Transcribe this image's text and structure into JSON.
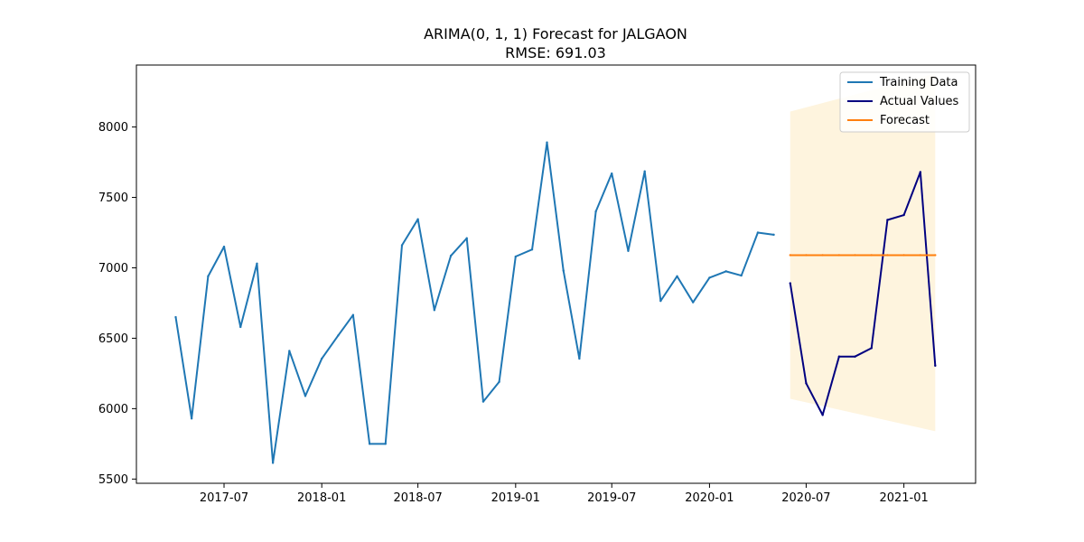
{
  "chart_data": {
    "type": "line",
    "title": "ARIMA(0, 1, 1) Forecast for JALGAON",
    "subtitle": "RMSE: 691.03",
    "xlabel": "",
    "ylabel": "",
    "x_range": [
      "2017-01-17",
      "2021-05-16"
    ],
    "ylim": [
      5470,
      8440
    ],
    "y_ticks": [
      5500,
      6000,
      6500,
      7000,
      7500,
      8000
    ],
    "x_ticks": [
      {
        "date": "2017-07-01",
        "label": "2017-07"
      },
      {
        "date": "2018-01-01",
        "label": "2018-01"
      },
      {
        "date": "2018-07-01",
        "label": "2018-07"
      },
      {
        "date": "2019-01-01",
        "label": "2019-01"
      },
      {
        "date": "2019-07-01",
        "label": "2019-07"
      },
      {
        "date": "2020-01-01",
        "label": "2020-01"
      },
      {
        "date": "2020-07-01",
        "label": "2020-07"
      },
      {
        "date": "2021-01-01",
        "label": "2021-01"
      }
    ],
    "grid": false,
    "legend_position": "top-right",
    "series": [
      {
        "name": "Training Data",
        "color": "#1f77b4",
        "x": [
          "2017-04-01",
          "2017-05-01",
          "2017-06-01",
          "2017-07-01",
          "2017-08-01",
          "2017-09-01",
          "2017-10-01",
          "2017-11-01",
          "2017-12-01",
          "2018-01-01",
          "2018-02-01",
          "2018-03-01",
          "2018-04-01",
          "2018-05-01",
          "2018-06-01",
          "2018-07-01",
          "2018-08-01",
          "2018-09-01",
          "2018-10-01",
          "2018-11-01",
          "2018-12-01",
          "2019-01-01",
          "2019-02-01",
          "2019-03-01",
          "2019-04-01",
          "2019-05-01",
          "2019-06-01",
          "2019-07-01",
          "2019-08-01",
          "2019-09-01",
          "2019-10-01",
          "2019-11-01",
          "2019-12-01",
          "2020-01-01",
          "2020-02-01",
          "2020-03-01",
          "2020-04-01",
          "2020-05-01"
        ],
        "values": [
          6650,
          5930,
          6940,
          7150,
          6580,
          7030,
          5615,
          6410,
          6090,
          6355,
          6520,
          6665,
          5750,
          5750,
          7160,
          7345,
          6700,
          7085,
          7210,
          6050,
          6190,
          7080,
          7130,
          7890,
          6980,
          6355,
          7400,
          7670,
          7120,
          7685,
          6765,
          6940,
          6755,
          6930,
          6975,
          6945,
          7250,
          7235
        ]
      },
      {
        "name": "Actual Values",
        "color": "#000080",
        "x": [
          "2020-06-01",
          "2020-07-01",
          "2020-08-01",
          "2020-09-01",
          "2020-10-01",
          "2020-11-01",
          "2020-12-01",
          "2021-01-01",
          "2021-02-01",
          "2021-03-01"
        ],
        "values": [
          6890,
          6180,
          5955,
          6370,
          6370,
          6430,
          7340,
          7375,
          7680,
          6305
        ]
      },
      {
        "name": "Forecast",
        "color": "#ff7f0e",
        "x": [
          "2020-06-01",
          "2020-07-01",
          "2020-08-01",
          "2020-09-01",
          "2020-10-01",
          "2020-11-01",
          "2020-12-01",
          "2021-01-01",
          "2021-02-01",
          "2021-03-01"
        ],
        "values": [
          7090,
          7090,
          7090,
          7090,
          7090,
          7090,
          7090,
          7090,
          7090,
          7090
        ]
      }
    ],
    "confidence_band": {
      "color": "#fdecc8",
      "x": [
        "2020-06-01",
        "2021-03-01"
      ],
      "lower": [
        6070,
        5840
      ],
      "upper": [
        8110,
        8380
      ]
    }
  }
}
